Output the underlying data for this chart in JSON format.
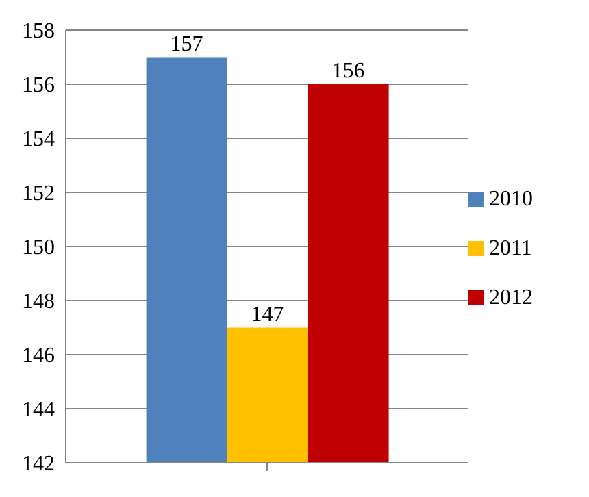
{
  "chart_data": {
    "type": "bar",
    "categories": [
      null
    ],
    "series": [
      {
        "name": "2010",
        "color": "#4f81bd",
        "values": [
          157
        ]
      },
      {
        "name": "2011",
        "color": "#ffc000",
        "values": [
          147
        ]
      },
      {
        "name": "2012",
        "color": "#c00000",
        "values": [
          156
        ]
      }
    ],
    "ylim": [
      142,
      158
    ],
    "yticks": [
      142,
      144,
      146,
      148,
      150,
      152,
      154,
      156,
      158
    ],
    "grid": "y",
    "legend": "right",
    "data_labels": true
  }
}
